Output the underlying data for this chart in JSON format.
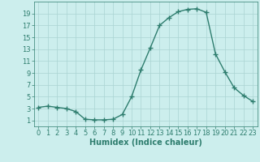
{
  "x": [
    0,
    1,
    2,
    3,
    4,
    5,
    6,
    7,
    8,
    9,
    10,
    11,
    12,
    13,
    14,
    15,
    16,
    17,
    18,
    19,
    20,
    21,
    22,
    23
  ],
  "y": [
    3.2,
    3.4,
    3.2,
    3.0,
    2.5,
    1.2,
    1.1,
    1.1,
    1.2,
    2.0,
    5.0,
    9.5,
    13.2,
    17.0,
    18.3,
    19.3,
    19.7,
    19.8,
    19.2,
    12.2,
    9.2,
    6.5,
    5.2,
    4.2
  ],
  "line_color": "#2e7d6e",
  "marker": "+",
  "markersize": 4,
  "linewidth": 1.0,
  "bg_color": "#cceeed",
  "grid_color": "#aad4d2",
  "xlabel": "Humidex (Indice chaleur)",
  "xlabel_fontsize": 7,
  "tick_fontsize": 6,
  "ylim": [
    0,
    21
  ],
  "xlim": [
    -0.5,
    23.5
  ],
  "yticks": [
    1,
    3,
    5,
    7,
    9,
    11,
    13,
    15,
    17,
    19
  ],
  "xticks": [
    0,
    1,
    2,
    3,
    4,
    5,
    6,
    7,
    8,
    9,
    10,
    11,
    12,
    13,
    14,
    15,
    16,
    17,
    18,
    19,
    20,
    21,
    22,
    23
  ]
}
